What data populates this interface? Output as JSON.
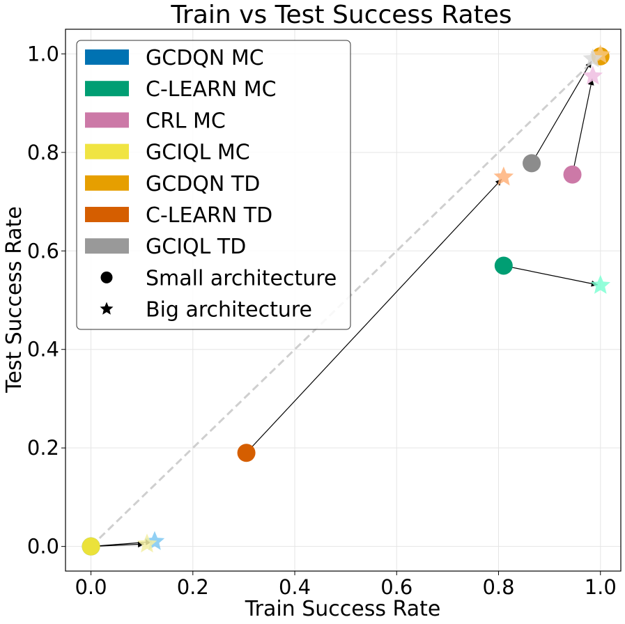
{
  "chart_data": {
    "type": "scatter",
    "title": "Train vs Test Success Rates",
    "xlabel": "Train Success Rate",
    "ylabel": "Test Success Rate",
    "xlim": [
      -0.05,
      1.04
    ],
    "ylim": [
      -0.05,
      1.05
    ],
    "xticks": [
      "0.0",
      "0.2",
      "0.4",
      "0.6",
      "0.8",
      "1.0"
    ],
    "yticks": [
      "0.0",
      "0.2",
      "0.4",
      "0.6",
      "0.8",
      "1.0"
    ],
    "grid": true,
    "diagonal": {
      "from": [
        0,
        0
      ],
      "to": [
        1,
        1
      ],
      "style": "dashed",
      "color": "#cfcfcf"
    },
    "legend": {
      "placement": "top-left",
      "entries": [
        {
          "label": "GCDQN MC",
          "marker": "patch",
          "color": "#0072b2"
        },
        {
          "label": "C-LEARN MC",
          "marker": "patch",
          "color": "#009e73"
        },
        {
          "label": "CRL MC",
          "marker": "patch",
          "color": "#cc79a7"
        },
        {
          "label": "GCIQL MC",
          "marker": "patch",
          "color": "#f0e442"
        },
        {
          "label": "GCDQN TD",
          "marker": "patch",
          "color": "#e69f00"
        },
        {
          "label": "C-LEARN TD",
          "marker": "patch",
          "color": "#d55e00"
        },
        {
          "label": "GCIQL TD",
          "marker": "patch",
          "color": "#999999"
        },
        {
          "label": "Small architecture",
          "marker": "circle",
          "color": "#000000"
        },
        {
          "label": "Big architecture",
          "marker": "star",
          "color": "#000000"
        }
      ]
    },
    "series": [
      {
        "name": "GCDQN MC",
        "small": [
          0.0,
          0.0
        ],
        "big": [
          0.125,
          0.01
        ],
        "small_color": "#0072b2",
        "big_color": "#7ec8f2"
      },
      {
        "name": "C-LEARN MC",
        "small": [
          0.81,
          0.57
        ],
        "big": [
          1.0,
          0.53
        ],
        "small_color": "#009e73",
        "big_color": "#7fffd4"
      },
      {
        "name": "CRL MC",
        "small": [
          0.945,
          0.755
        ],
        "big": [
          0.985,
          0.955
        ],
        "small_color": "#cc79a7",
        "big_color": "#eebde0"
      },
      {
        "name": "GCIQL MC",
        "small": [
          0.0,
          0.0
        ],
        "big": [
          0.11,
          0.005
        ],
        "small_color": "#ebe23a",
        "big_color": "#f3efa3"
      },
      {
        "name": "GCDQN TD",
        "small": [
          1.0,
          0.995
        ],
        "big": [
          1.0,
          0.998
        ],
        "small_color": "#e69f00",
        "big_color": "#f7c57a"
      },
      {
        "name": "C-LEARN TD",
        "small": [
          0.305,
          0.19
        ],
        "big": [
          0.81,
          0.75
        ],
        "small_color": "#d55e00",
        "big_color": "#ffb27a"
      },
      {
        "name": "GCIQL TD",
        "small": [
          0.865,
          0.778
        ],
        "big": [
          0.985,
          0.99
        ],
        "small_color": "#8c8c8c",
        "big_color": "#d9d9d9"
      }
    ]
  }
}
